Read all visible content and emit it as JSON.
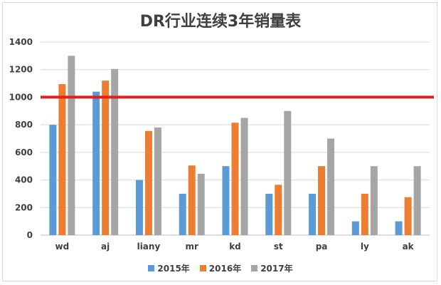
{
  "chart_data": {
    "type": "bar",
    "title": "DR行业连续3年销量表",
    "categories": [
      "wd",
      "aj",
      "liany",
      "mr",
      "kd",
      "st",
      "pa",
      "ly",
      "ak"
    ],
    "series": [
      {
        "name": "2015年",
        "color": "#5b9bd5",
        "values": [
          800,
          1040,
          400,
          300,
          500,
          300,
          300,
          100,
          100
        ]
      },
      {
        "name": "2016年",
        "color": "#ed7d31",
        "values": [
          1095,
          1120,
          755,
          505,
          815,
          365,
          500,
          300,
          275
        ]
      },
      {
        "name": "2017年",
        "color": "#a5a5a5",
        "values": [
          1300,
          1205,
          780,
          445,
          850,
          900,
          700,
          500,
          500
        ]
      }
    ],
    "ylim": [
      0,
      1400
    ],
    "yticks": [
      0,
      200,
      400,
      600,
      800,
      1000,
      1200,
      1400
    ],
    "grid": true,
    "reference_line": {
      "value": 1000,
      "color": "#e02020"
    },
    "legend_position": "bottom"
  }
}
